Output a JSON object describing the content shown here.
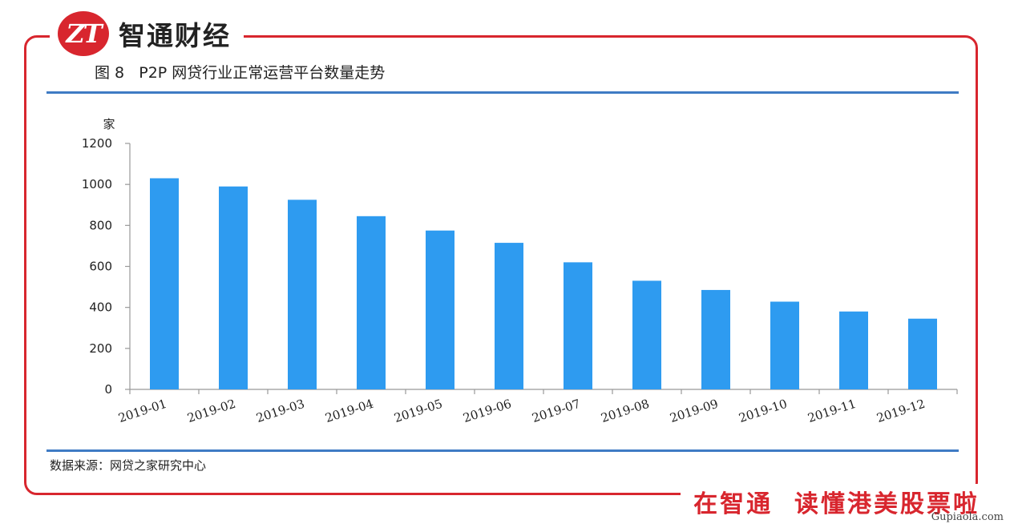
{
  "brand": {
    "logo_text": "ZT",
    "name": "智通财经"
  },
  "figure_title": "图 8   P2P 网贷行业正常运营平台数量走势",
  "source": "数据来源：网贷之家研究中心",
  "slogan": "在智通  读懂港美股票啦",
  "watermark": "Gupiaola.com",
  "colors": {
    "bar": "#2e9bf0",
    "frame": "#d8262e",
    "rule": "#3f7bc4"
  },
  "chart_data": {
    "type": "bar",
    "unit": "家",
    "categories": [
      "2019-01",
      "2019-02",
      "2019-03",
      "2019-04",
      "2019-05",
      "2019-06",
      "2019-07",
      "2019-08",
      "2019-09",
      "2019-10",
      "2019-11",
      "2019-12"
    ],
    "values": [
      1030,
      990,
      925,
      845,
      775,
      715,
      620,
      530,
      485,
      428,
      380,
      345
    ],
    "ylim": [
      0,
      1200
    ],
    "yticks": [
      0,
      200,
      400,
      600,
      800,
      1000,
      1200
    ],
    "grid": false
  }
}
